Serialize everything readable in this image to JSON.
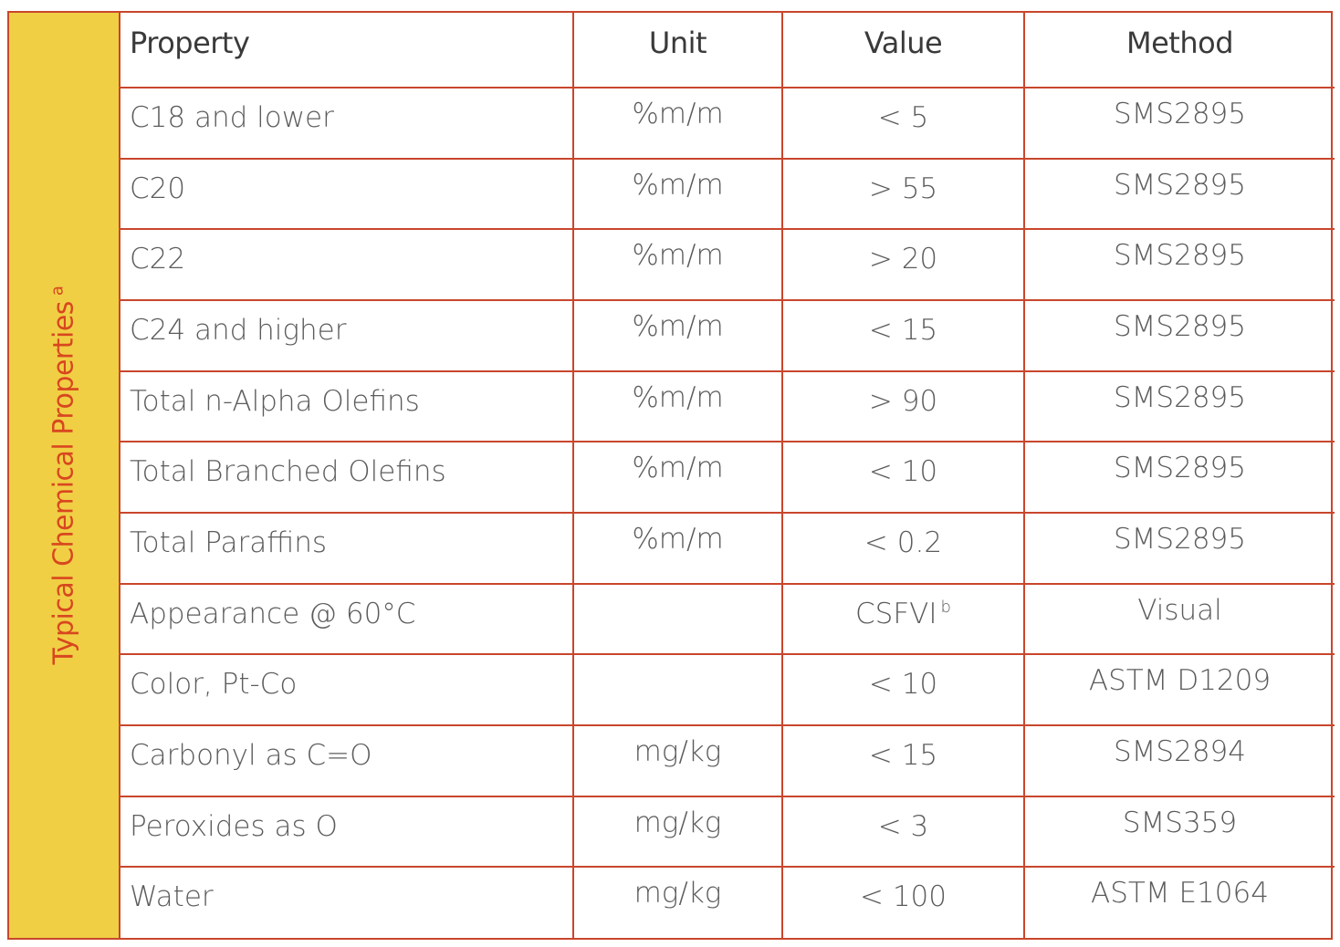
{
  "side_label": "Typical Chemical Properties",
  "side_label_footnote": "a",
  "headers": {
    "property": "Property",
    "unit": "Unit",
    "value": "Value",
    "method": "Method"
  },
  "rows": [
    {
      "property": "C18 and lower",
      "unit": "%m/m",
      "value": "< 5",
      "value_note": "",
      "method": "SMS2895"
    },
    {
      "property": "C20",
      "unit": "%m/m",
      "value": "> 55",
      "value_note": "",
      "method": "SMS2895"
    },
    {
      "property": "C22",
      "unit": "%m/m",
      "value": "> 20",
      "value_note": "",
      "method": "SMS2895"
    },
    {
      "property": "C24 and higher",
      "unit": "%m/m",
      "value": "< 15",
      "value_note": "",
      "method": "SMS2895"
    },
    {
      "property": "Total n-Alpha Olefins",
      "unit": "%m/m",
      "value": "> 90",
      "value_note": "",
      "method": "SMS2895"
    },
    {
      "property": "Total Branched Olefins",
      "unit": "%m/m",
      "value": "< 10",
      "value_note": "",
      "method": "SMS2895"
    },
    {
      "property": "Total Paraffins",
      "unit": "%m/m",
      "value": "< 0.2",
      "value_note": "",
      "method": "SMS2895"
    },
    {
      "property": "Appearance @ 60°C",
      "unit": "",
      "value": "CSFVI",
      "value_note": "b",
      "method": "Visual"
    },
    {
      "property": "Color, Pt-Co",
      "unit": "",
      "value": "< 10",
      "value_note": "",
      "method": "ASTM D1209"
    },
    {
      "property": "Carbonyl as C=O",
      "unit": "mg/kg",
      "value": "< 15",
      "value_note": "",
      "method": "SMS2894"
    },
    {
      "property": "Peroxides as O",
      "unit": "mg/kg",
      "value": "< 3",
      "value_note": "",
      "method": "SMS359"
    },
    {
      "property": "Water",
      "unit": "mg/kg",
      "value": "< 100",
      "value_note": "",
      "method": "ASTM E1064"
    }
  ]
}
